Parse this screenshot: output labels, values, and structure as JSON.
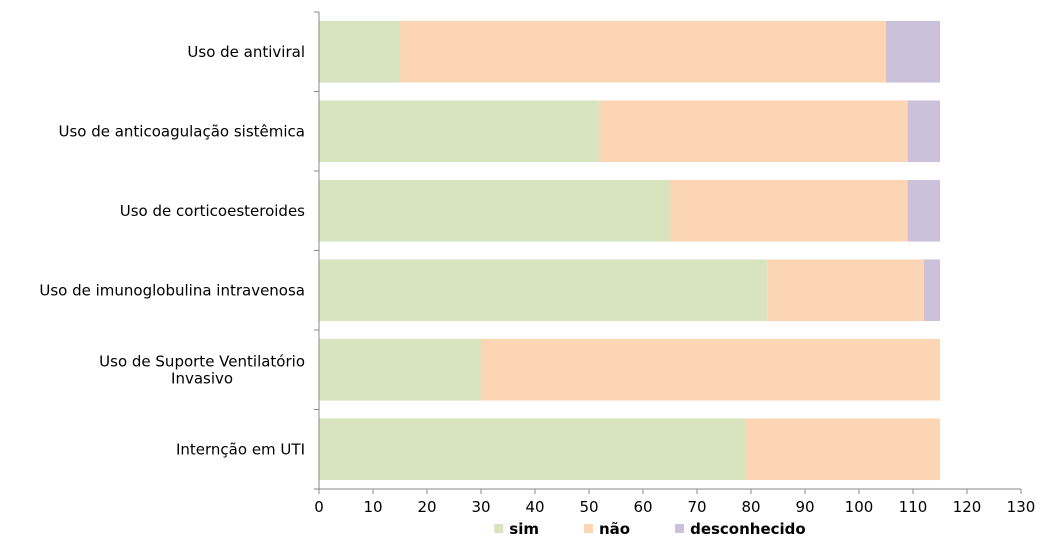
{
  "chart_data": {
    "type": "bar",
    "orientation": "horizontal",
    "stacked": true,
    "categories": [
      [
        "Uso de antiviral"
      ],
      [
        "Uso de anticoagulação sistêmica"
      ],
      [
        "Uso de corticoesteroides"
      ],
      [
        "Uso de imunoglobulina intravenosa"
      ],
      [
        "Uso de Suporte Ventilatório",
        "Invasivo"
      ],
      [
        "Internção em UTI"
      ]
    ],
    "series": [
      {
        "name": "sim",
        "color": "#d7e4bd",
        "values": [
          15,
          52,
          65,
          83,
          30,
          79
        ]
      },
      {
        "name": "não",
        "color": "#fcd5b5",
        "values": [
          90,
          57,
          44,
          29,
          85,
          36
        ]
      },
      {
        "name": "desconhecido",
        "color": "#ccc1da",
        "values": [
          10,
          6,
          6,
          3,
          0,
          0
        ]
      }
    ],
    "xlim": [
      0,
      130
    ],
    "x_ticks": [
      0,
      10,
      20,
      30,
      40,
      50,
      60,
      70,
      80,
      90,
      100,
      110,
      120,
      130
    ],
    "legend_position": "bottom",
    "grid": false
  }
}
